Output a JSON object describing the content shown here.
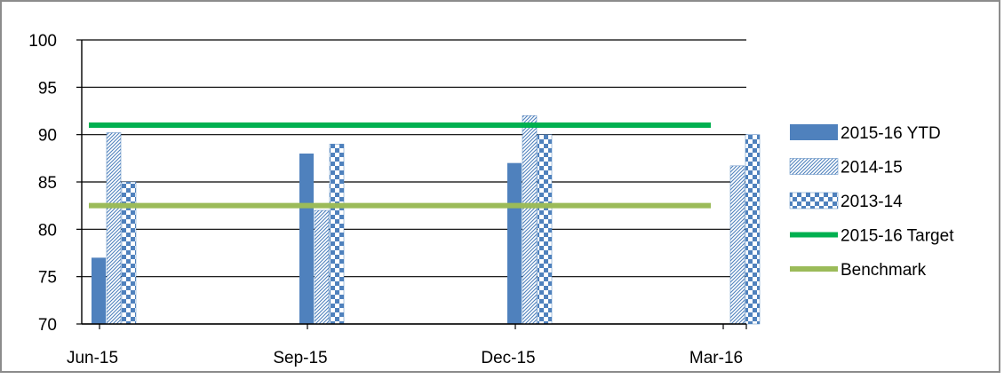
{
  "chart_data": {
    "type": "bar",
    "categories": [
      "Jun-15",
      "Sep-15",
      "Dec-15",
      "Mar-16"
    ],
    "ylim": [
      70,
      100
    ],
    "yticks": [
      70,
      75,
      80,
      85,
      90,
      95,
      100
    ],
    "grid": true,
    "legend_position": "right",
    "series": [
      {
        "name": "2015-16 YTD",
        "type": "bar",
        "pattern": "solid",
        "color": "#4f81bd",
        "values": [
          77,
          88,
          87,
          null
        ]
      },
      {
        "name": "2014-15",
        "type": "bar",
        "pattern": "diagonal-stripes",
        "color": "#4f81bd",
        "values": [
          90.2,
          82,
          92,
          86.7
        ]
      },
      {
        "name": "2013-14",
        "type": "bar",
        "pattern": "checkerboard",
        "color": "#4f81bd",
        "values": [
          85,
          89,
          90,
          90
        ]
      },
      {
        "name": "2015-16 Target",
        "type": "line",
        "color": "#00b050",
        "values": [
          91,
          91,
          91,
          91
        ]
      },
      {
        "name": "Benchmark",
        "type": "line",
        "color": "#9bbb59",
        "values": [
          82.5,
          82.5,
          82.5,
          82.5
        ]
      }
    ]
  }
}
